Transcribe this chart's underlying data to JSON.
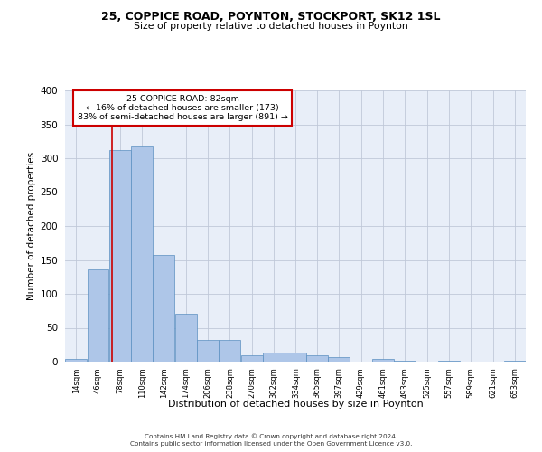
{
  "title1": "25, COPPICE ROAD, POYNTON, STOCKPORT, SK12 1SL",
  "title2": "Size of property relative to detached houses in Poynton",
  "xlabel": "Distribution of detached houses by size in Poynton",
  "ylabel": "Number of detached properties",
  "footer1": "Contains HM Land Registry data © Crown copyright and database right 2024.",
  "footer2": "Contains public sector information licensed under the Open Government Licence v3.0.",
  "annotation_title": "25 COPPICE ROAD: 82sqm",
  "annotation_line2": "← 16% of detached houses are smaller (173)",
  "annotation_line3": "83% of semi-detached houses are larger (891) →",
  "property_sqm": 82,
  "bin_edges": [
    14,
    46,
    78,
    110,
    142,
    174,
    206,
    238,
    270,
    302,
    334,
    365,
    397,
    429,
    461,
    493,
    525,
    557,
    589,
    621,
    653
  ],
  "bar_heights": [
    4,
    136,
    312,
    317,
    157,
    71,
    32,
    32,
    10,
    13,
    13,
    9,
    7,
    0,
    4,
    2,
    0,
    2,
    0,
    0,
    2
  ],
  "bar_color": "#aec6e8",
  "bar_edge_color": "#5a8fc0",
  "marker_line_color": "#cc0000",
  "annotation_box_color": "#cc0000",
  "grid_color": "#c0c8d8",
  "bg_color": "#e8eef8",
  "ylim": [
    0,
    400
  ],
  "yticks": [
    0,
    50,
    100,
    150,
    200,
    250,
    300,
    350,
    400
  ]
}
